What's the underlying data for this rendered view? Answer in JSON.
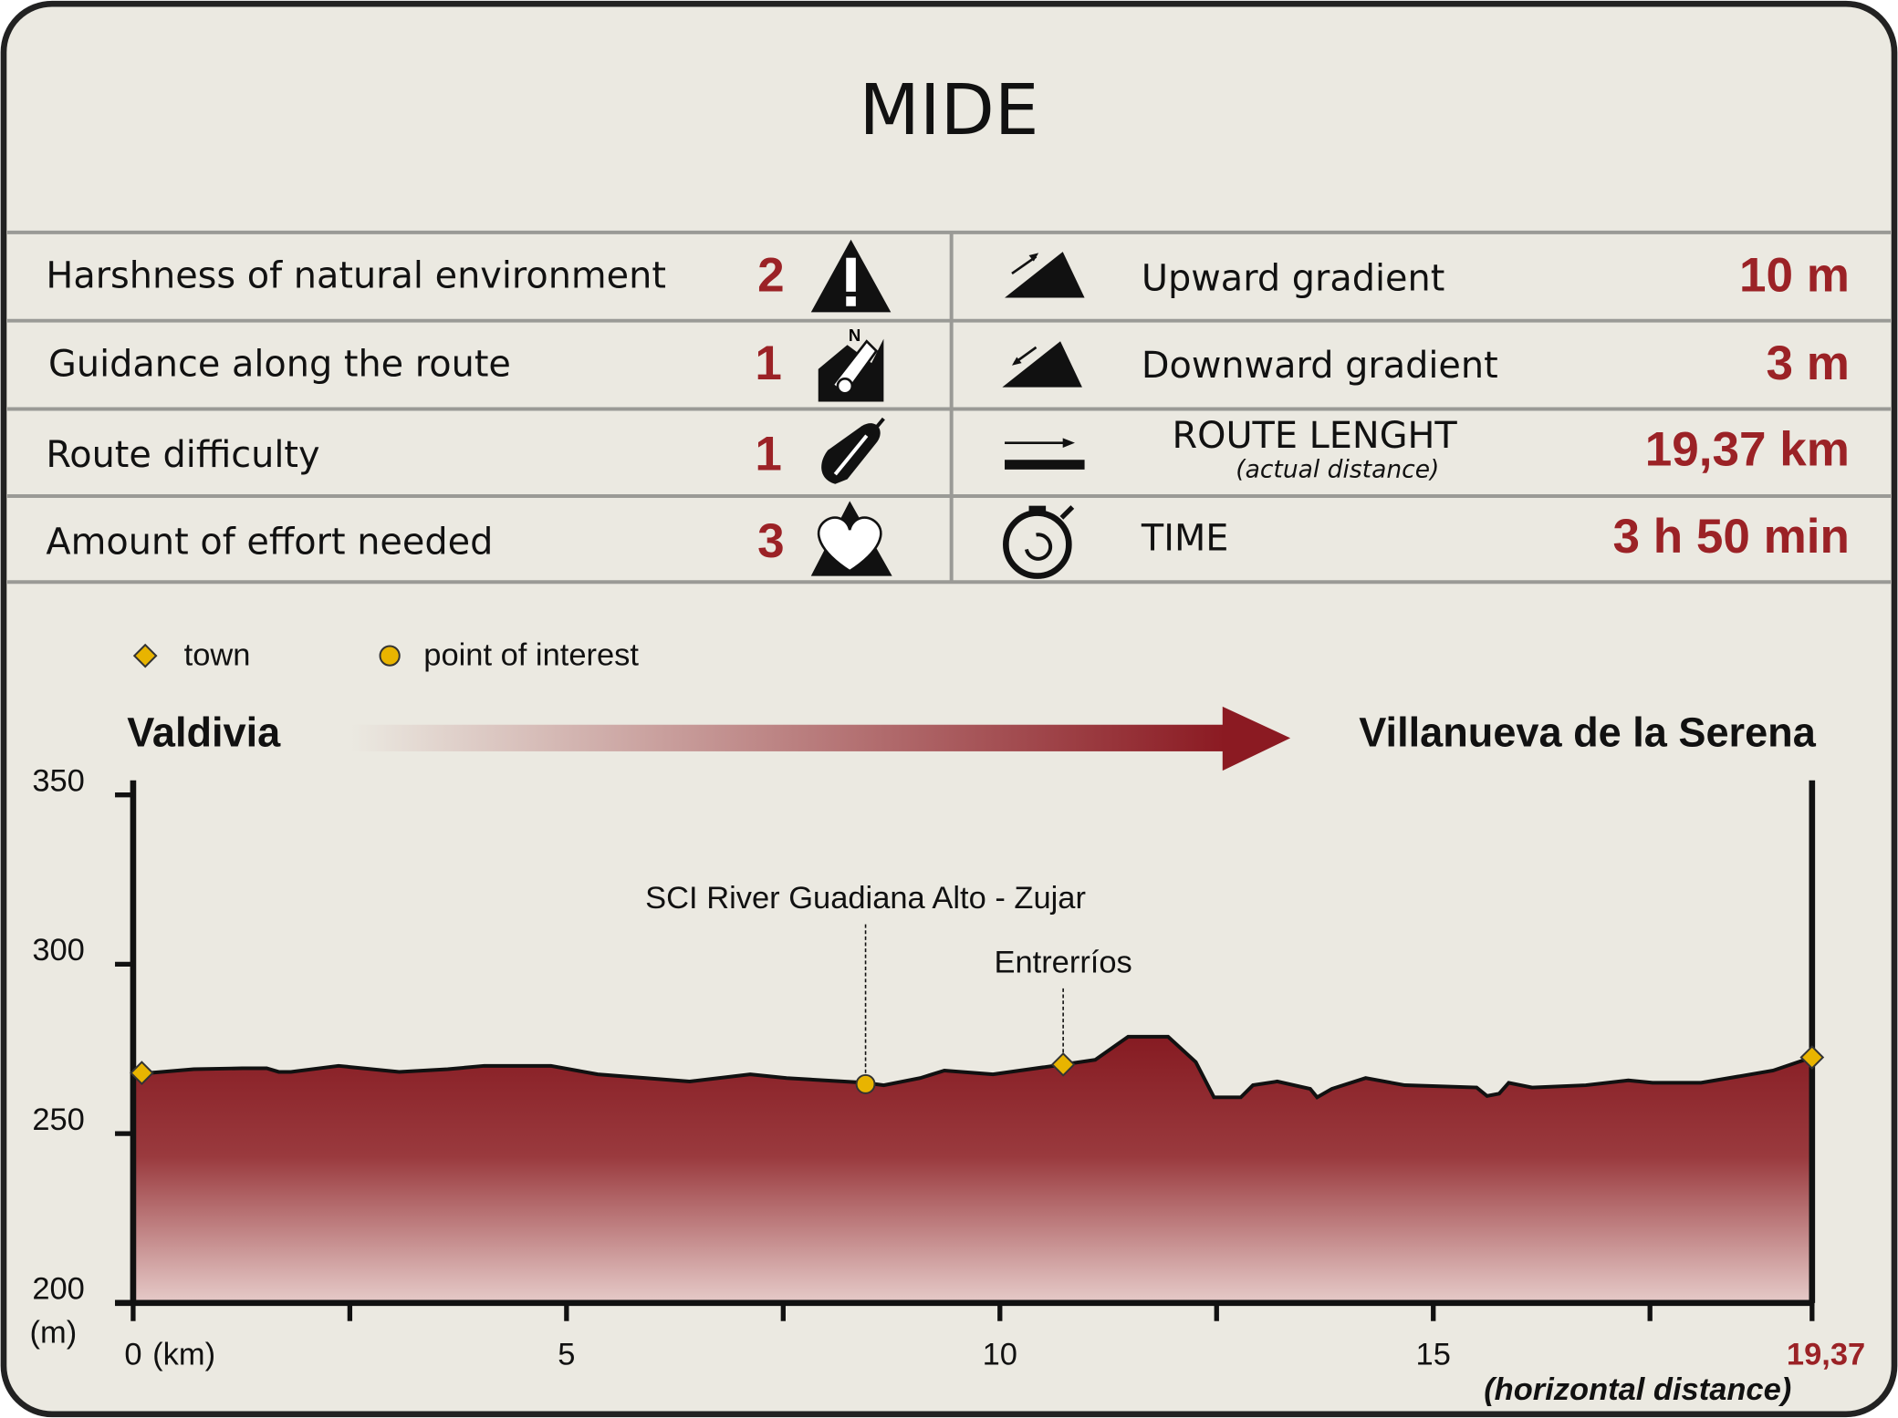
{
  "header": {
    "title": "MIDE"
  },
  "mide": {
    "rows": [
      {
        "label": "Harshness of natural environment",
        "value": 2
      },
      {
        "label": "Guidance along the route",
        "value": 1
      },
      {
        "label": "Route difficulty",
        "value": 1
      },
      {
        "label": "Amount of effort needed",
        "value": 3
      }
    ],
    "stats": [
      {
        "label": "Upward gradient",
        "value": "10 m"
      },
      {
        "label": "Downward gradient",
        "value": "3 m"
      },
      {
        "label": "ROUTE LENGHT",
        "note": "(actual distance)",
        "value": "19,37 km"
      },
      {
        "label": "TIME",
        "value": "3 h 50 min"
      }
    ]
  },
  "chart_data": {
    "type": "area",
    "start": "Valdivia",
    "end": "Villanueva de la Serena",
    "legend": [
      {
        "name": "town",
        "color": "#e8b400",
        "shape": "diamond"
      },
      {
        "name": "point of interest",
        "color": "#e8b400",
        "shape": "circle"
      }
    ],
    "x": [
      0,
      0.7,
      1.26,
      1.54,
      1.68,
      1.82,
      2.37,
      3.07,
      3.63,
      4.05,
      4.82,
      5.36,
      6.42,
      7.12,
      7.54,
      8.45,
      8.66,
      9.08,
      9.36,
      9.92,
      10.73,
      11.1,
      11.48,
      11.94,
      12.26,
      12.47,
      12.78,
      12.92,
      13.2,
      13.58,
      13.66,
      13.83,
      14.22,
      14.67,
      15.5,
      15.62,
      15.76,
      15.87,
      16.14,
      16.76,
      17.25,
      17.53,
      18.09,
      18.92,
      19.37
    ],
    "series": [
      {
        "color": "#8b1a22",
        "values": [
          267.5,
          269,
          269.3,
          269.3,
          268.2,
          268.2,
          270,
          268.2,
          269,
          270,
          270,
          267.5,
          265.4,
          267.5,
          266.4,
          265,
          264.3,
          266.4,
          268.6,
          267.5,
          270.4,
          271.8,
          278.6,
          278.6,
          271.1,
          260.7,
          260.7,
          264.3,
          265.4,
          263.2,
          260.7,
          263.2,
          266.4,
          264.3,
          263.6,
          261.1,
          261.8,
          265,
          263.6,
          264.3,
          265.7,
          265,
          265,
          268.6,
          272.5
        ]
      }
    ],
    "markers": [
      {
        "shape": "diamond",
        "x": 0.1,
        "y": 267.9
      },
      {
        "shape": "circle",
        "label": "SCI River Guadiana Alto - Zujar",
        "x": 8.45,
        "y": 264.6
      },
      {
        "shape": "diamond",
        "label": "Entrerríos",
        "x": 10.73,
        "y": 270.4
      },
      {
        "shape": "diamond",
        "x": 19.37,
        "y": 272.5
      }
    ],
    "xlim": [
      0,
      19.37
    ],
    "ylim": [
      200,
      350
    ],
    "xticks": [
      0,
      5,
      10,
      15,
      {
        "value": 19.37,
        "label": "19,37"
      }
    ],
    "xminorticks": [
      2.5,
      7.5,
      12.5,
      17.5
    ],
    "yticks": [
      200,
      250,
      300,
      350
    ],
    "xlabel": "(km)",
    "ylabel": "(m)",
    "xnote": "(horizontal distance)",
    "end_label_color": "#9b2226"
  }
}
